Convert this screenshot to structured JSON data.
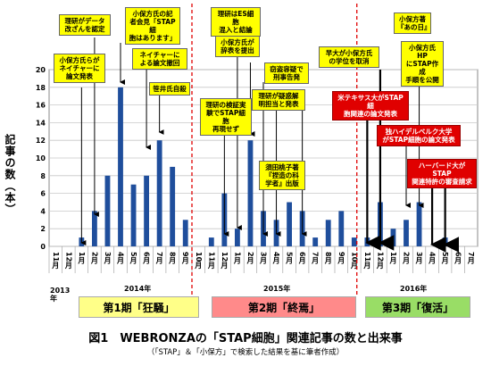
{
  "chart_data": {
    "type": "bar",
    "ylabel": "記事の数（本）",
    "ylim": [
      0,
      20
    ],
    "yticks": [
      0,
      2,
      4,
      6,
      8,
      10,
      12,
      14,
      16,
      18,
      20
    ],
    "categories": [
      "11月",
      "12月",
      "1月",
      "2月",
      "3月",
      "4月",
      "5月",
      "6月",
      "7月",
      "8月",
      "9月",
      "10月",
      "11月",
      "12月",
      "1月",
      "2月",
      "3月",
      "4月",
      "5月",
      "6月",
      "7月",
      "8月",
      "9月",
      "10月",
      "11月",
      "12月",
      "1月",
      "2月",
      "3月",
      "4月",
      "5月",
      "6月",
      "7月"
    ],
    "values": [
      0,
      0,
      1,
      4,
      8,
      18,
      7,
      8,
      12,
      9,
      3,
      0,
      1,
      6,
      2,
      12,
      4,
      3,
      5,
      4,
      1,
      3,
      4,
      1,
      1,
      5,
      2,
      3,
      5,
      0,
      1,
      0,
      0
    ],
    "color": "#1f4e9c",
    "grid": true,
    "year_labels": [
      {
        "label": "2013年"
      },
      {
        "label": "2014年"
      },
      {
        "label": "2015年"
      },
      {
        "label": "2016年"
      }
    ],
    "phases": [
      {
        "label": "第1期「狂騒」",
        "color": "#ffff88"
      },
      {
        "label": "第2期「終焉」",
        "color": "#ff8a8a"
      },
      {
        "label": "第3期「復活」",
        "color": "#99dd66"
      }
    ]
  },
  "annotations": [
    {
      "text": "小保方氏らが\nネイチャーに\n論文発表",
      "style": "yellow"
    },
    {
      "text": "理研がデータ\n改ざんを認定",
      "style": "yellow"
    },
    {
      "text": "小保方氏の記\n者会見「STAP細\n胞はあります」",
      "style": "yellow"
    },
    {
      "text": "ネイチャーに\nよる論文撤回",
      "style": "yellow"
    },
    {
      "text": "笹井氏自殺",
      "style": "yellow"
    },
    {
      "text": "理研の検証実\n験でSTAP細胞\n再現せず",
      "style": "yellow"
    },
    {
      "text": "理研はES細胞\n混入と結論",
      "style": "yellow"
    },
    {
      "text": "小保方氏が\n辞表を提出",
      "style": "yellow"
    },
    {
      "text": "窃盗容疑で\n刑事告発",
      "style": "yellow"
    },
    {
      "text": "理研が疑惑解\n明担当と発表",
      "style": "yellow"
    },
    {
      "text": "須田桃子著\n『捏造の科\n学者』出版",
      "style": "yellow"
    },
    {
      "text": "早大が小保方氏\nの学位を取消",
      "style": "yellow"
    },
    {
      "text": "小保方著\n『あの日』",
      "style": "yellow"
    },
    {
      "text": "小保方氏HP\nにSTAP作成\n手順を公開",
      "style": "yellow"
    },
    {
      "text": "米テキサス大がSTAP細\n胞関連の論文発表",
      "style": "red"
    },
    {
      "text": "独ハイデルベルク大学\nがSTAP細胞の論文発表",
      "style": "red"
    },
    {
      "text": "ハーバード大がSTAP\n関連特許の審査請求",
      "style": "red"
    }
  ],
  "caption": "図1　WEBRONZAの「STAP細胞」関連記事の数と出来事",
  "subcaption": "（「STAP」＆「小保方」で検索した結果を基に筆者作成）"
}
